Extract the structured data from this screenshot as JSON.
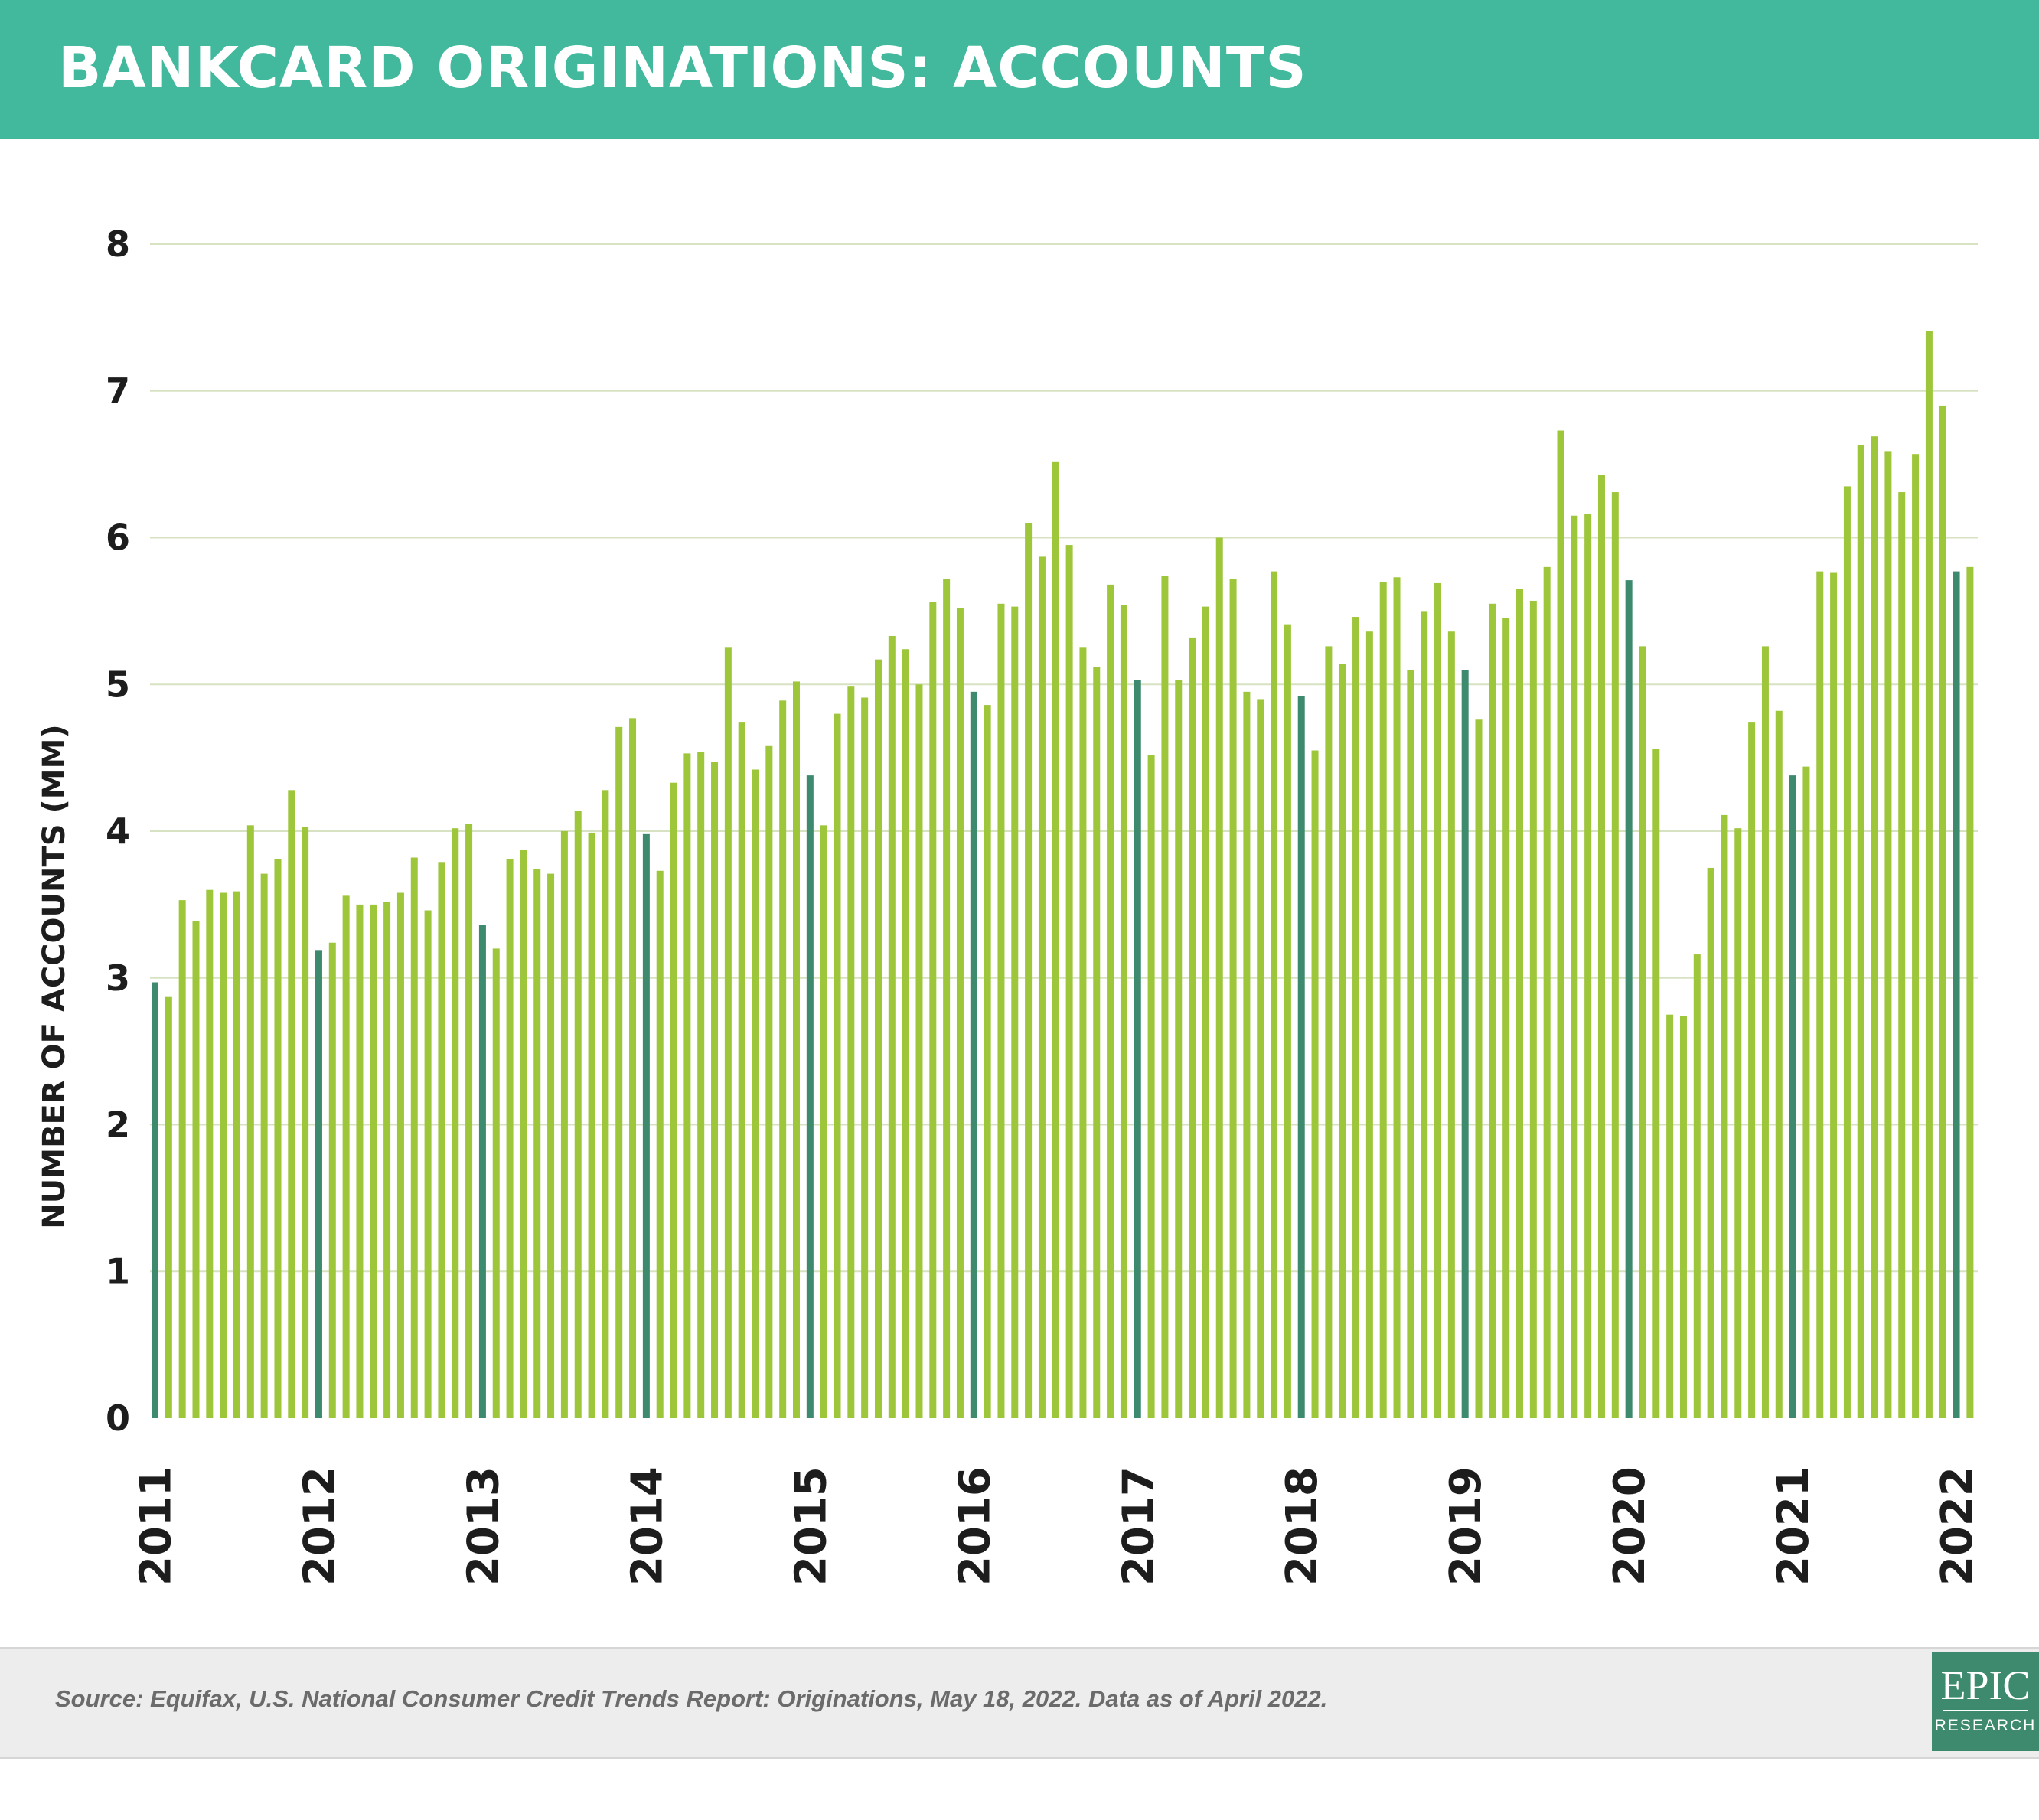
{
  "title": "BANKCARD ORIGINATIONS: ACCOUNTS",
  "source": "Source: Equifax, U.S. National Consumer Credit Trends Report: Originations, May 18, 2022. Data as of April 2022.",
  "logo": {
    "top": "EPIC",
    "bottom": "RESEARCH"
  },
  "colors": {
    "header_bg": "#42b99d",
    "bar": "#9dc63b",
    "bar_january": "#3e8a6e",
    "grid": "#d7e2c2",
    "footer_bg": "#eeedee"
  },
  "chart_data": {
    "type": "bar",
    "ylabel": "NUMBER OF ACCOUNTS (MM)",
    "xlabel": "",
    "ylim": [
      0,
      8
    ],
    "yticks": [
      "0",
      "1",
      "2",
      "3",
      "4",
      "5",
      "6",
      "7",
      "8"
    ],
    "grid": true,
    "x_tick_labels": [
      "2011",
      "2012",
      "2013",
      "2014",
      "2015",
      "2016",
      "2017",
      "2018",
      "2019",
      "2020",
      "2021",
      "2022"
    ],
    "series": [
      {
        "values": [
          2.97,
          2.87,
          3.53,
          3.39,
          3.6,
          3.58,
          3.59,
          4.04,
          3.71,
          3.81,
          4.28,
          4.03,
          3.19,
          3.24,
          3.56,
          3.5,
          3.5,
          3.52,
          3.58,
          3.82,
          3.46,
          3.79,
          4.02,
          4.05,
          3.36,
          3.2,
          3.81,
          3.87,
          3.74,
          3.71,
          4.0,
          4.14,
          3.99,
          4.28,
          4.71,
          4.77,
          3.98,
          3.73,
          4.33,
          4.53,
          4.54,
          4.47,
          5.25,
          4.74,
          4.42,
          4.58,
          4.89,
          5.02,
          4.38,
          4.04,
          4.8,
          4.99,
          4.91,
          5.17,
          5.33,
          5.24,
          5.0,
          5.56,
          5.72,
          5.52,
          4.95,
          4.86,
          5.55,
          5.53,
          6.1,
          5.87,
          6.52,
          5.95,
          5.25,
          5.12,
          5.68,
          5.54,
          5.03,
          4.52,
          5.74,
          5.03,
          5.32,
          5.53,
          6.0,
          5.72,
          4.95,
          4.9,
          5.77,
          5.41,
          4.92,
          4.55,
          5.26,
          5.14,
          5.46,
          5.36,
          5.7,
          5.73,
          5.1,
          5.5,
          5.69,
          5.36,
          5.1,
          4.76,
          5.55,
          5.45,
          5.65,
          5.57,
          5.8,
          6.73,
          6.15,
          6.16,
          6.43,
          6.31,
          5.71,
          5.26,
          4.56,
          2.75,
          2.74,
          3.16,
          3.75,
          4.11,
          4.02,
          4.74,
          5.26,
          4.82,
          4.38,
          4.44,
          5.77,
          5.76,
          6.35,
          6.63,
          6.69,
          6.59,
          6.31,
          6.57,
          7.41,
          6.9,
          5.77,
          5.8
        ]
      }
    ]
  }
}
